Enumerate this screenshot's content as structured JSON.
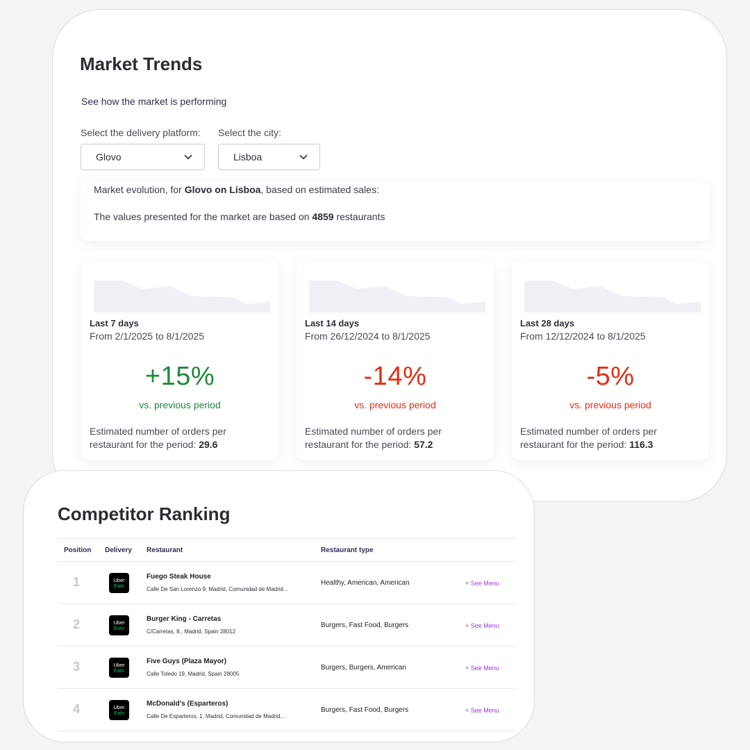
{
  "market_trends": {
    "title": "Market Trends",
    "subtitle": "See how the market is performing",
    "platform_label": "Select the delivery platform:",
    "platform_value": "Glovo",
    "city_label": "Select the city:",
    "city_value": "Lisboa",
    "evolution_prefix": "Market evolution, for ",
    "evolution_bold": "Glovo on Lisboa",
    "evolution_suffix": ", based on estimated sales:",
    "values_prefix": "The values presented for the market are based on ",
    "restaurant_count": "4859",
    "values_suffix": " restaurants",
    "periods": [
      {
        "label": "Last 7 days",
        "range": "From 2/1/2025 to 8/1/2025",
        "change": "+15%",
        "vs": "vs. previous period",
        "orders_text": "Estimated number of orders per restaurant for the period: ",
        "orders_value": "29.6",
        "trend": "positive"
      },
      {
        "label": "Last 14 days",
        "range": "From 26/12/2024 to 8/1/2025",
        "change": "-14%",
        "vs": "vs. previous period",
        "orders_text": "Estimated number of orders per restaurant for the period: ",
        "orders_value": "57.2",
        "trend": "negative"
      },
      {
        "label": "Last 28 days",
        "range": "From 12/12/2024 to 8/1/2025",
        "change": "-5%",
        "vs": "vs. previous period",
        "orders_text": "Estimated number of orders per restaurant for the period: ",
        "orders_value": "116.3",
        "trend": "negative"
      }
    ]
  },
  "competitor_ranking": {
    "title": "Competitor Ranking",
    "headers": {
      "position": "Position",
      "delivery": "Delivery",
      "restaurant": "Restaurant",
      "type": "Restaurant type"
    },
    "delivery_logo": {
      "line1": "Uber",
      "line2": "Eats"
    },
    "rows": [
      {
        "position": "1",
        "name": "Fuego Steak House",
        "address": "Calle De San Lorenzo 9, Madrid, Comunidad de Madrid...",
        "type": "Healthy, American, American",
        "menu": "+ See Menu"
      },
      {
        "position": "2",
        "name": "Burger King - Carretas",
        "address": "C/Carretas, 8., Madrid, Spain 28012",
        "type": "Burgers, Fast Food, Burgers",
        "menu": "+ See Menu"
      },
      {
        "position": "3",
        "name": "Five Guys (Plaza Mayor)",
        "address": "Calle Toledo 19, Madrid, Spain 28005",
        "type": "Burgers, Burgers, American",
        "menu": "+ See Menu"
      },
      {
        "position": "4",
        "name": "McDonald's (Esparteros)",
        "address": "Calle De Esparteros, 1, Madrid, Comunidad de Madrid...",
        "type": "Burgers, Fast Food, Burgers",
        "menu": "+ See Menu"
      }
    ]
  },
  "colors": {
    "positive": "#1f8a3a",
    "negative": "#ea2b14",
    "link": "#9a3bd6"
  }
}
